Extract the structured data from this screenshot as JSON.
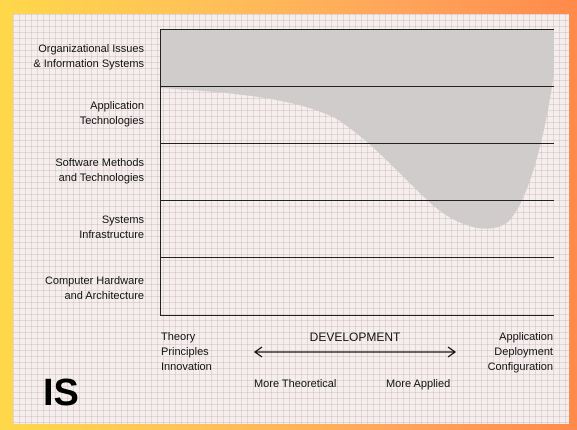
{
  "rows": [
    {
      "label": "Organizational Issues\n& Information Systems"
    },
    {
      "label": "Application\nTechnologies"
    },
    {
      "label": "Software Methods\nand Technologies"
    },
    {
      "label": "Systems\nInfrastructure"
    },
    {
      "label": "Computer Hardware\nand Architecture"
    }
  ],
  "axis": {
    "left_label": "Theory\nPrinciples\nInnovation",
    "center_label": "DEVELOPMENT",
    "right_label": "Application\nDeployment\nConfiguration",
    "left_arrow_label": "More Theoretical",
    "right_arrow_label": "More Applied"
  },
  "corner_mark": "IS",
  "colors": {
    "region": "#d0cccc",
    "line": "#222222",
    "background_left": "#ffd84a",
    "background_right": "#ff8a4a"
  }
}
